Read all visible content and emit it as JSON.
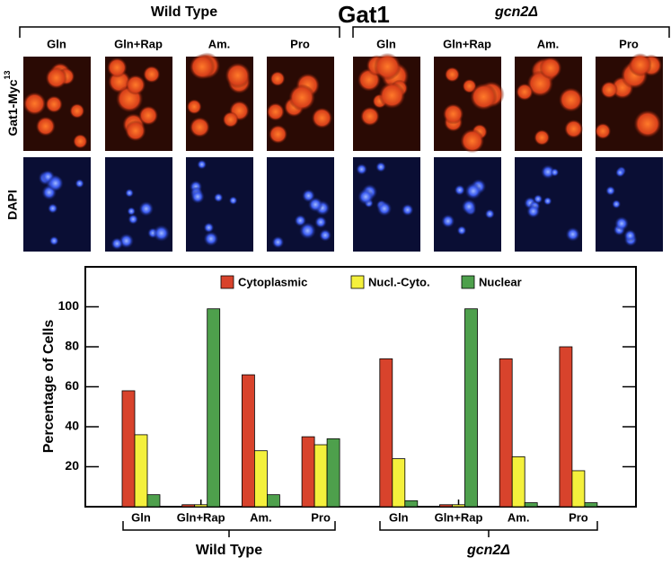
{
  "header": {
    "title": "Gat1",
    "groups": [
      "Wild Type",
      "gcn2Δ"
    ],
    "columns": [
      "Gln",
      "Gln+Rap",
      "Am.",
      "Pro"
    ],
    "rows": [
      {
        "label": "Gat1-Myc",
        "superscript": "13"
      },
      {
        "label": "DAPI"
      }
    ]
  },
  "chart_data": {
    "type": "bar",
    "y_label": "Percentage of Cells",
    "categories": [
      "Gln",
      "Gln+Rap",
      "Am.",
      "Pro",
      "Gln",
      "Gln+Rap",
      "Am.",
      "Pro"
    ],
    "group_labels": [
      "Wild Type",
      "gcn2Δ"
    ],
    "series": [
      {
        "name": "Cytoplasmic",
        "color": "#d8432c",
        "values": [
          58,
          1,
          66,
          35,
          74,
          1,
          74,
          80
        ]
      },
      {
        "name": "Nucl.-Cyto.",
        "color": "#f4f03c",
        "values": [
          36,
          1,
          28,
          31,
          24,
          1,
          25,
          18
        ]
      },
      {
        "name": "Nuclear",
        "color": "#4ea04c",
        "values": [
          6,
          99,
          6,
          34,
          3,
          99,
          2,
          2
        ]
      }
    ],
    "ylim": [
      0,
      120
    ],
    "yticks": [
      20,
      40,
      60,
      80,
      100
    ],
    "legend": "top"
  }
}
